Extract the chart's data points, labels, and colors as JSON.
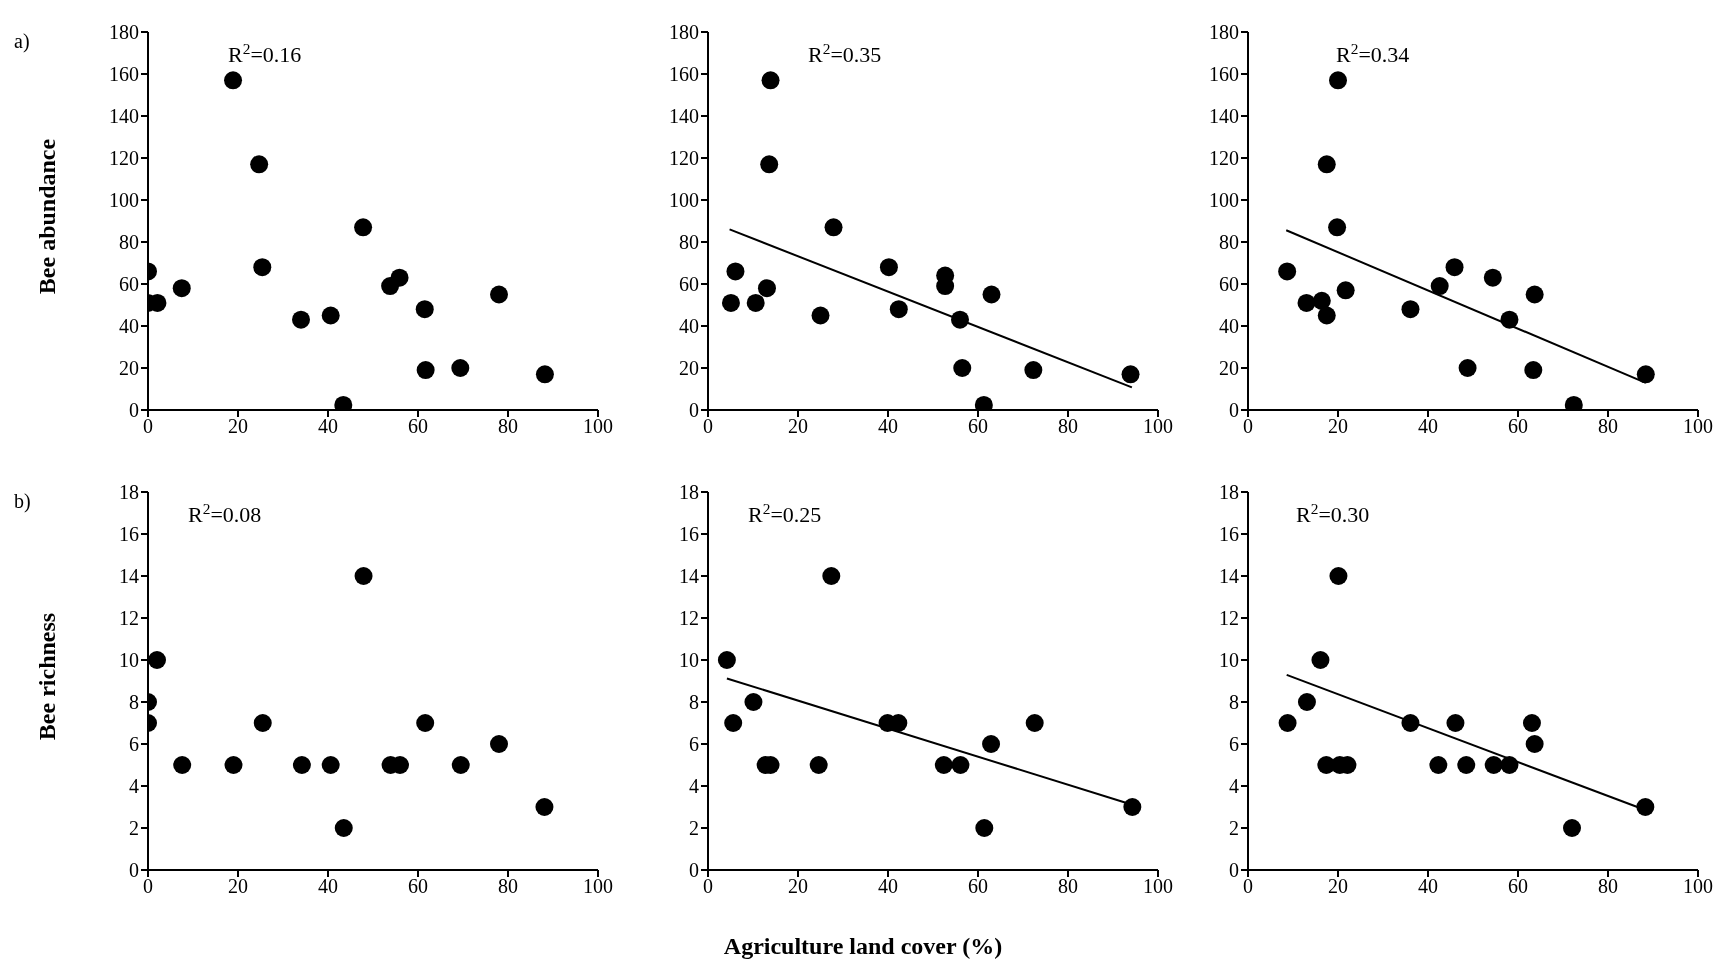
{
  "chart_data": [
    {
      "type": "scatter",
      "title": "a)",
      "ylabel": "Bee abundance",
      "annotations": [
        "R$^{2}$=0.16"
      ],
      "xlim": [
        0,
        100
      ],
      "xticks": [
        0,
        20,
        40,
        60,
        80,
        100
      ],
      "ylim": [
        0,
        180
      ],
      "yticks": [
        0,
        20,
        40,
        60,
        80,
        100,
        120,
        140,
        160,
        180
      ],
      "series": [
        {
          "color": "#000000",
          "marker": "circle",
          "x": [
            18.9,
            24.7,
            25.4,
            0,
            0,
            2.1,
            7.5,
            34,
            40.6,
            47.8,
            53.8,
            55.9,
            61.5,
            61.7,
            69.4,
            78,
            88.2,
            43.4
          ],
          "values": [
            157,
            117,
            68,
            66,
            51,
            51,
            58,
            43,
            45,
            87,
            59,
            63,
            48,
            19,
            20,
            55,
            17,
            2.4
          ]
        }
      ]
    },
    {
      "type": "scatter",
      "annotations": [
        "R$^{2}$=0.35"
      ],
      "xlim": [
        0,
        100
      ],
      "xticks": [
        0,
        20,
        40,
        60,
        80,
        100
      ],
      "ylim": [
        0,
        180
      ],
      "yticks": [
        0,
        20,
        40,
        60,
        80,
        100,
        120,
        140,
        160,
        180
      ],
      "series": [
        {
          "color": "#000000",
          "marker": "circle",
          "x": [
            13.9,
            13.6,
            27.9,
            6.1,
            5.1,
            10.6,
            13.1,
            25,
            40.2,
            42.4,
            52.7,
            52.7,
            63,
            56,
            56.5,
            72.3,
            93.9,
            61.3
          ],
          "values": [
            157,
            117,
            87,
            66,
            51,
            51,
            58,
            45,
            68,
            48,
            64,
            59,
            55,
            43,
            20,
            19,
            17,
            2.4
          ]
        },
        {
          "type": "line",
          "color": "#000000",
          "marker": "none",
          "x": [
            4.8,
            94.2
          ],
          "values": [
            86,
            10.8
          ]
        }
      ]
    },
    {
      "type": "scatter",
      "annotations": [
        "R$^{2}$=0.34"
      ],
      "xlim": [
        0,
        100
      ],
      "xticks": [
        0,
        20,
        40,
        60,
        80,
        100
      ],
      "ylim": [
        0,
        180
      ],
      "yticks": [
        0,
        20,
        40,
        60,
        80,
        100,
        120,
        140,
        160,
        180
      ],
      "series": [
        {
          "color": "#000000",
          "marker": "circle",
          "x": [
            20,
            17.5,
            19.8,
            8.7,
            13,
            16.4,
            17.5,
            21.7,
            36.1,
            42.6,
            45.9,
            54.4,
            63.7,
            58.1,
            48.8,
            63.4,
            72.4,
            88.4
          ],
          "values": [
            157,
            117,
            87,
            66,
            51,
            52,
            45,
            57,
            48,
            59,
            68,
            63,
            55,
            43,
            20,
            19,
            2.4,
            17
          ]
        },
        {
          "type": "line",
          "color": "#000000",
          "marker": "none",
          "x": [
            8.5,
            88.4
          ],
          "values": [
            85.6,
            12.9
          ]
        }
      ]
    },
    {
      "type": "scatter",
      "title": "b)",
      "ylabel": "Bee richness",
      "annotations": [
        "R$^{2}$=0.08"
      ],
      "xlim": [
        0,
        100
      ],
      "xticks": [
        0,
        20,
        40,
        60,
        80,
        100
      ],
      "ylim": [
        0,
        18
      ],
      "yticks": [
        0,
        2,
        4,
        6,
        8,
        10,
        12,
        14,
        16,
        18
      ],
      "series": [
        {
          "color": "#000000",
          "marker": "circle",
          "x": [
            0,
            0,
            2,
            7.6,
            19,
            25.5,
            34.2,
            40.6,
            47.9,
            43.5,
            53.9,
            56,
            61.6,
            69.5,
            78,
            88.1
          ],
          "values": [
            7,
            8,
            10,
            5,
            5,
            7,
            5,
            5,
            14,
            2,
            5,
            5,
            7,
            5,
            6,
            3
          ]
        }
      ]
    },
    {
      "type": "scatter",
      "xlabel": "Agriculture land cover (%)",
      "annotations": [
        "R$^{2}$=0.25"
      ],
      "xlim": [
        0,
        100
      ],
      "xticks": [
        0,
        20,
        40,
        60,
        80,
        100
      ],
      "ylim": [
        0,
        18
      ],
      "yticks": [
        0,
        2,
        4,
        6,
        8,
        10,
        12,
        14,
        16,
        18
      ],
      "series": [
        {
          "color": "#000000",
          "marker": "circle",
          "x": [
            4.2,
            5.6,
            10.1,
            12.8,
            13.9,
            24.6,
            27.4,
            39.9,
            42.3,
            52.4,
            56.1,
            62.9,
            72.6,
            61.4,
            94.3
          ],
          "values": [
            10,
            7,
            8,
            5,
            5,
            5,
            14,
            7,
            7,
            5,
            5,
            6,
            7,
            2,
            3
          ]
        },
        {
          "type": "line",
          "color": "#000000",
          "marker": "none",
          "x": [
            4.2,
            94.1
          ],
          "values": [
            9.12,
            3.12
          ]
        }
      ]
    },
    {
      "type": "scatter",
      "annotations": [
        "R$^{2}$=0.30"
      ],
      "xlim": [
        0,
        100
      ],
      "xticks": [
        0,
        20,
        40,
        60,
        80,
        100
      ],
      "ylim": [
        0,
        18
      ],
      "yticks": [
        0,
        2,
        4,
        6,
        8,
        10,
        12,
        14,
        16,
        18
      ],
      "series": [
        {
          "color": "#000000",
          "marker": "circle",
          "x": [
            8.8,
            13.1,
            16.1,
            20.1,
            17.4,
            20.4,
            22.1,
            36.1,
            42.3,
            46.1,
            48.5,
            54.6,
            58.1,
            63.1,
            63.7,
            72,
            88.3
          ],
          "values": [
            7,
            8,
            10,
            14,
            5,
            5,
            5,
            7,
            5,
            7,
            5,
            5,
            5,
            7,
            6,
            2,
            3
          ]
        },
        {
          "type": "line",
          "color": "#000000",
          "marker": "none",
          "x": [
            8.6,
            88
          ],
          "values": [
            9.29,
            2.88
          ]
        }
      ]
    }
  ]
}
